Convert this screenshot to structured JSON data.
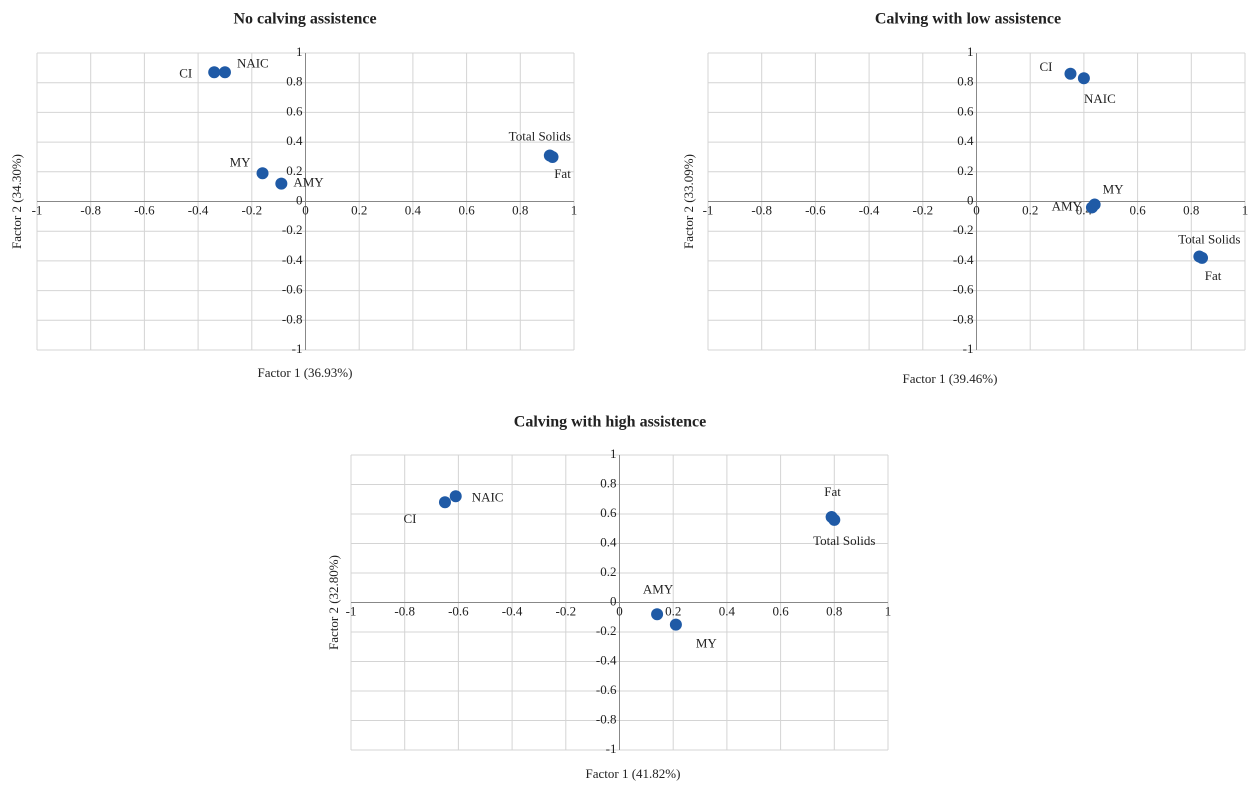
{
  "chart_data": [
    {
      "type": "scatter",
      "title": "No calving assistence",
      "x_label": "Factor 1 (36.93%)",
      "y_label": "Factor 2 (34.30%)",
      "labels": [
        "CI",
        "NAIC",
        "MY",
        "AMY",
        "Total Solids",
        "Fat"
      ],
      "x": [
        -0.34,
        -0.3,
        -0.16,
        -0.09,
        0.91,
        0.92
      ],
      "y": [
        0.87,
        0.87,
        0.19,
        0.12,
        0.31,
        0.3
      ],
      "color": "#1f5aa6",
      "xlim": [
        -1,
        1
      ],
      "ylim": [
        -1,
        1
      ],
      "xticks": [
        -1,
        -0.8,
        -0.6,
        -0.4,
        -0.2,
        0,
        0.2,
        0.4,
        0.6,
        0.8,
        1
      ],
      "yticks": [
        -1,
        -0.8,
        -0.6,
        -0.4,
        -0.2,
        0,
        0.2,
        0.4,
        0.6,
        0.8,
        1
      ],
      "grid": true
    },
    {
      "type": "scatter",
      "title": "Calving with low assistence",
      "x_label": "Factor 1 (39.46%)",
      "y_label": "Factor 2 (33.09%)",
      "labels": [
        "CI",
        "NAIC",
        "MY",
        "AMY",
        "Total Solids",
        "Fat"
      ],
      "x": [
        0.35,
        0.4,
        0.44,
        0.43,
        0.83,
        0.84
      ],
      "y": [
        0.86,
        0.83,
        -0.02,
        -0.04,
        -0.37,
        -0.38
      ],
      "color": "#1f5aa6",
      "xlim": [
        -1,
        1
      ],
      "ylim": [
        -1,
        1
      ],
      "xticks": [
        -1,
        -0.8,
        -0.6,
        -0.4,
        -0.2,
        0,
        0.2,
        0.4,
        0.6,
        0.8,
        1
      ],
      "yticks": [
        -1,
        -0.8,
        -0.6,
        -0.4,
        -0.2,
        0,
        0.2,
        0.4,
        0.6,
        0.8,
        1
      ],
      "grid": true
    },
    {
      "type": "scatter",
      "title": "Calving with high assistence",
      "x_label": "Factor 1 (41.82%)",
      "y_label": "Factor 2 (32.80%)",
      "labels": [
        "CI",
        "NAIC",
        "AMY",
        "MY",
        "Fat",
        "Total Solids"
      ],
      "x": [
        -0.65,
        -0.61,
        0.14,
        0.21,
        0.79,
        0.8
      ],
      "y": [
        0.68,
        0.72,
        -0.08,
        -0.15,
        0.58,
        0.56
      ],
      "color": "#1f5aa6",
      "xlim": [
        -1,
        1
      ],
      "ylim": [
        -1,
        1
      ],
      "xticks": [
        -1,
        -0.8,
        -0.6,
        -0.4,
        -0.2,
        0,
        0.2,
        0.4,
        0.6,
        0.8,
        1
      ],
      "yticks": [
        -1,
        -0.8,
        -0.6,
        -0.4,
        -0.2,
        0,
        0.2,
        0.4,
        0.6,
        0.8,
        1
      ],
      "grid": true
    }
  ]
}
